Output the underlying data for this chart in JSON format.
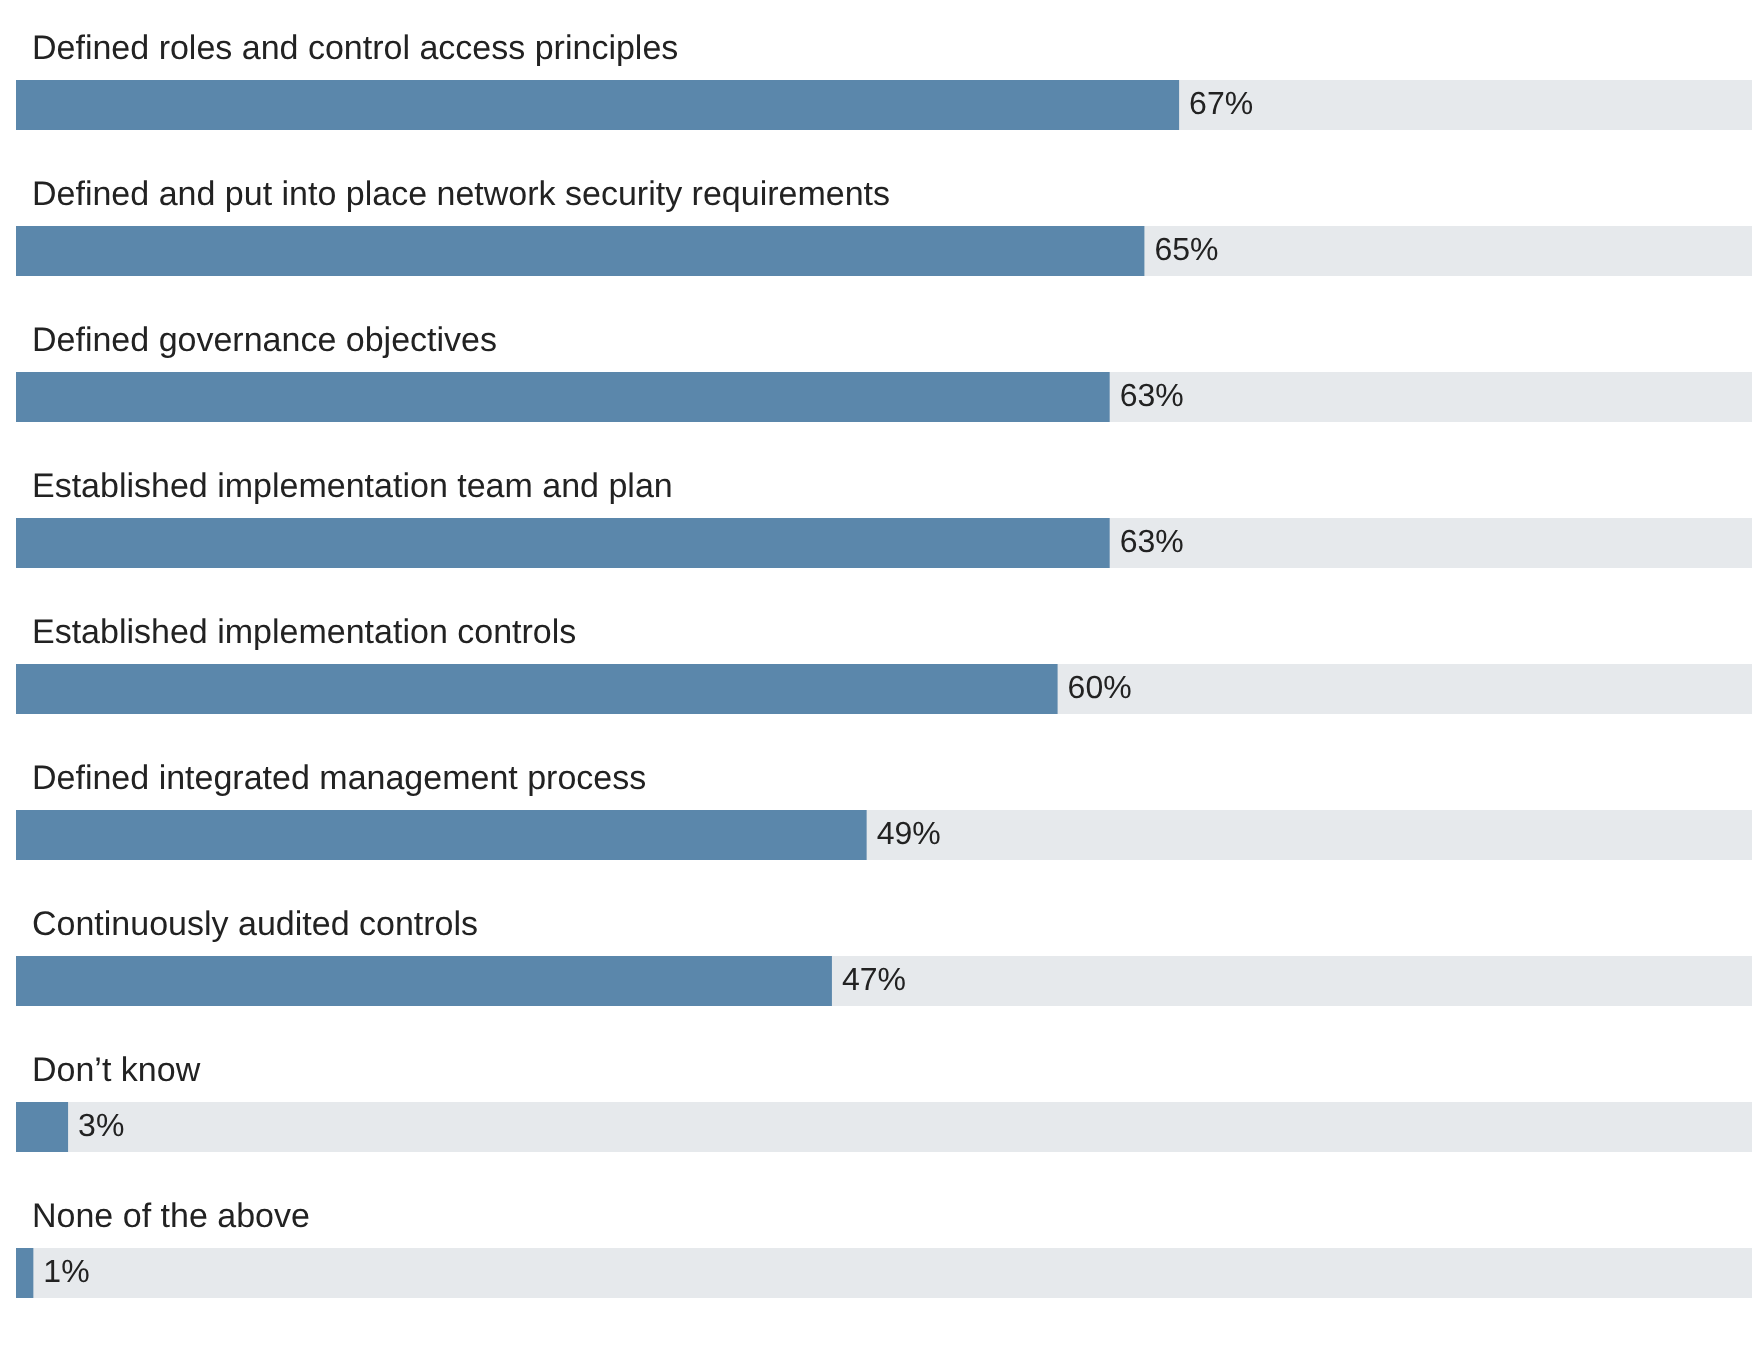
{
  "chart_data": {
    "type": "bar",
    "orientation": "horizontal",
    "categories": [
      "Defined roles and control access principles",
      "Defined and put into place network security requirements",
      "Defined governance objectives",
      "Established implementation team and plan",
      "Established implementation controls",
      "Defined integrated management process",
      "Continuously audited controls",
      "Don’t know",
      "None of the above"
    ],
    "values": [
      67,
      65,
      63,
      63,
      60,
      49,
      47,
      3,
      1
    ],
    "value_labels": [
      "67%",
      "65%",
      "63%",
      "63%",
      "60%",
      "49%",
      "47%",
      "3%",
      "1%"
    ],
    "color": "#5b87ab",
    "xlim": [
      0,
      100
    ]
  }
}
